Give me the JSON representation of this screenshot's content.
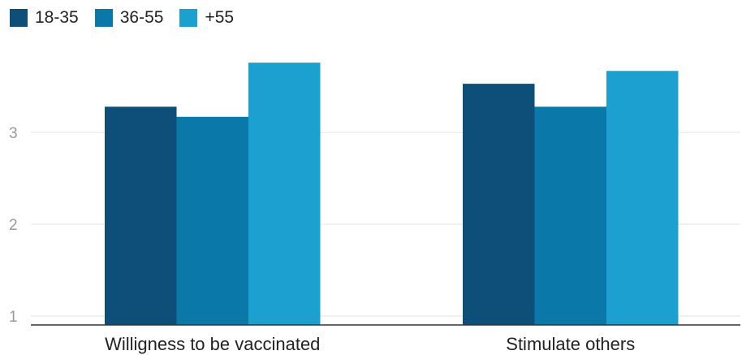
{
  "chart_data": {
    "type": "bar",
    "categories": [
      "Willigness to be vaccinated",
      "Stimulate others"
    ],
    "series": [
      {
        "name": "18-35",
        "values": [
          3.28,
          3.53
        ],
        "color": "#0d4f78"
      },
      {
        "name": "36-55",
        "values": [
          3.17,
          3.28
        ],
        "color": "#0a78a8"
      },
      {
        "name": "+55",
        "values": [
          3.76,
          3.67
        ],
        "color": "#1ba0d0"
      }
    ],
    "y_ticks": [
      "1",
      "2",
      "3"
    ],
    "ylim": [
      0.9,
      4.0
    ],
    "legend_position": "top-left",
    "grid": true,
    "title": "",
    "xlabel": "",
    "ylabel": ""
  }
}
